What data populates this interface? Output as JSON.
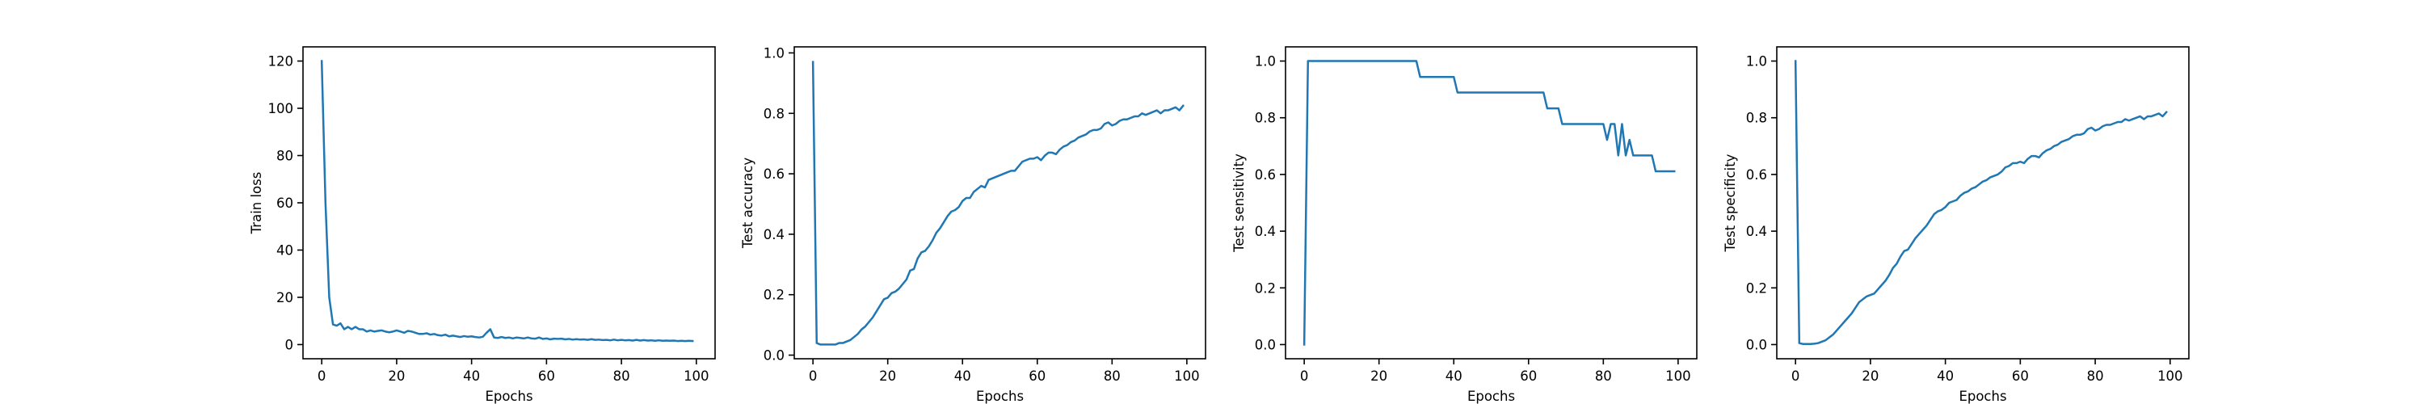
{
  "figure": {
    "background": "#ffffff",
    "line_color": "#1f77b4"
  },
  "chart_data": [
    {
      "type": "line",
      "xlabel": "Epochs",
      "ylabel": "Train loss",
      "xlim": [
        -5,
        105
      ],
      "ylim": [
        -6,
        126
      ],
      "xticks": [
        0,
        20,
        40,
        60,
        80,
        100
      ],
      "yticks": [
        0,
        20,
        40,
        60,
        80,
        100,
        120
      ],
      "grid": false,
      "series": [
        {
          "color": "#1f77b4",
          "x": [
            0,
            1,
            2,
            3,
            4,
            5,
            6,
            7,
            8,
            9,
            10,
            11,
            12,
            13,
            14,
            15,
            16,
            17,
            18,
            19,
            20,
            21,
            22,
            23,
            24,
            25,
            26,
            27,
            28,
            29,
            30,
            31,
            32,
            33,
            34,
            35,
            36,
            37,
            38,
            39,
            40,
            41,
            42,
            43,
            44,
            45,
            46,
            47,
            48,
            49,
            50,
            51,
            52,
            53,
            54,
            55,
            56,
            57,
            58,
            59,
            60,
            61,
            62,
            63,
            64,
            65,
            66,
            67,
            68,
            69,
            70,
            71,
            72,
            73,
            74,
            75,
            76,
            77,
            78,
            79,
            80,
            81,
            82,
            83,
            84,
            85,
            86,
            87,
            88,
            89,
            90,
            91,
            92,
            93,
            94,
            95,
            96,
            97,
            98,
            99
          ],
          "y": [
            120,
            60,
            20,
            8.5,
            8,
            9,
            6.5,
            7.5,
            6.5,
            7.5,
            6.5,
            6.5,
            5.5,
            6,
            5.5,
            5.8,
            6,
            5.5,
            5.2,
            5.5,
            6,
            5.5,
            5,
            5.8,
            5.5,
            5,
            4.5,
            4.5,
            4.8,
            4.2,
            4.5,
            4,
            3.8,
            4.2,
            3.5,
            3.8,
            3.5,
            3.2,
            3.6,
            3.3,
            3.5,
            3.2,
            3,
            3.3,
            5,
            6.5,
            3,
            2.8,
            3.2,
            2.8,
            3,
            2.6,
            3,
            2.8,
            2.6,
            3,
            2.6,
            2.5,
            3,
            2.4,
            2.6,
            2.2,
            2.5,
            2.4,
            2.5,
            2.2,
            2.4,
            2.1,
            2.3,
            2.1,
            2.2,
            2,
            2.3,
            2,
            2.1,
            1.9,
            2,
            1.8,
            2.1,
            1.8,
            2,
            1.8,
            1.9,
            1.7,
            2,
            1.7,
            1.9,
            1.7,
            1.8,
            1.6,
            1.8,
            1.6,
            1.7,
            1.6,
            1.7,
            1.5,
            1.6,
            1.5,
            1.6,
            1.5
          ]
        }
      ]
    },
    {
      "type": "line",
      "xlabel": "Epochs",
      "ylabel": "Test accuracy",
      "xlim": [
        -5,
        105
      ],
      "ylim": [
        -0.012,
        1.02
      ],
      "xticks": [
        0,
        20,
        40,
        60,
        80,
        100
      ],
      "yticks": [
        0.0,
        0.2,
        0.4,
        0.6,
        0.8,
        1.0
      ],
      "grid": false,
      "series": [
        {
          "color": "#1f77b4",
          "x": [
            0,
            1,
            2,
            3,
            4,
            5,
            6,
            7,
            8,
            9,
            10,
            11,
            12,
            13,
            14,
            15,
            16,
            17,
            18,
            19,
            20,
            21,
            22,
            23,
            24,
            25,
            26,
            27,
            28,
            29,
            30,
            31,
            32,
            33,
            34,
            35,
            36,
            37,
            38,
            39,
            40,
            41,
            42,
            43,
            44,
            45,
            46,
            47,
            48,
            49,
            50,
            51,
            52,
            53,
            54,
            55,
            56,
            57,
            58,
            59,
            60,
            61,
            62,
            63,
            64,
            65,
            66,
            67,
            68,
            69,
            70,
            71,
            72,
            73,
            74,
            75,
            76,
            77,
            78,
            79,
            80,
            81,
            82,
            83,
            84,
            85,
            86,
            87,
            88,
            89,
            90,
            91,
            92,
            93,
            94,
            95,
            96,
            97,
            98,
            99
          ],
          "y": [
            0.97,
            0.04,
            0.035,
            0.035,
            0.035,
            0.035,
            0.035,
            0.04,
            0.04,
            0.045,
            0.05,
            0.06,
            0.07,
            0.085,
            0.095,
            0.11,
            0.125,
            0.145,
            0.165,
            0.185,
            0.19,
            0.205,
            0.21,
            0.22,
            0.235,
            0.25,
            0.28,
            0.285,
            0.32,
            0.34,
            0.345,
            0.36,
            0.38,
            0.405,
            0.42,
            0.44,
            0.46,
            0.475,
            0.48,
            0.49,
            0.51,
            0.52,
            0.52,
            0.54,
            0.55,
            0.56,
            0.555,
            0.58,
            0.585,
            0.59,
            0.595,
            0.6,
            0.605,
            0.61,
            0.61,
            0.625,
            0.64,
            0.645,
            0.65,
            0.65,
            0.655,
            0.645,
            0.66,
            0.67,
            0.67,
            0.665,
            0.68,
            0.69,
            0.695,
            0.705,
            0.71,
            0.72,
            0.725,
            0.73,
            0.74,
            0.745,
            0.745,
            0.75,
            0.765,
            0.77,
            0.76,
            0.765,
            0.775,
            0.78,
            0.78,
            0.785,
            0.79,
            0.79,
            0.8,
            0.795,
            0.8,
            0.805,
            0.81,
            0.8,
            0.81,
            0.81,
            0.815,
            0.82,
            0.81,
            0.825
          ]
        }
      ]
    },
    {
      "type": "line",
      "xlabel": "Epochs",
      "ylabel": "Test sensitivity",
      "xlim": [
        -5,
        105
      ],
      "ylim": [
        -0.05,
        1.05
      ],
      "xticks": [
        0,
        20,
        40,
        60,
        80,
        100
      ],
      "yticks": [
        0.0,
        0.2,
        0.4,
        0.6,
        0.8,
        1.0
      ],
      "grid": false,
      "series": [
        {
          "color": "#1f77b4",
          "x": [
            0,
            1,
            29,
            30,
            31,
            39,
            40,
            41,
            63,
            64,
            65,
            67,
            68,
            69,
            79,
            80,
            81,
            82,
            83,
            84,
            85,
            86,
            87,
            88,
            89,
            90,
            93,
            94,
            95,
            99
          ],
          "y": [
            0.0,
            1.0,
            1.0,
            1.0,
            0.944,
            0.944,
            0.944,
            0.889,
            0.889,
            0.889,
            0.833,
            0.833,
            0.833,
            0.778,
            0.778,
            0.778,
            0.722,
            0.778,
            0.778,
            0.667,
            0.778,
            0.667,
            0.722,
            0.667,
            0.667,
            0.667,
            0.667,
            0.611,
            0.611,
            0.611
          ]
        }
      ]
    },
    {
      "type": "line",
      "xlabel": "Epochs",
      "ylabel": "Test specificity",
      "xlim": [
        -5,
        105
      ],
      "ylim": [
        -0.05,
        1.05
      ],
      "xticks": [
        0,
        20,
        40,
        60,
        80,
        100
      ],
      "yticks": [
        0.0,
        0.2,
        0.4,
        0.6,
        0.8,
        1.0
      ],
      "grid": false,
      "series": [
        {
          "color": "#1f77b4",
          "x": [
            0,
            1,
            2,
            3,
            4,
            5,
            6,
            7,
            8,
            9,
            10,
            11,
            12,
            13,
            14,
            15,
            16,
            17,
            18,
            19,
            20,
            21,
            22,
            23,
            24,
            25,
            26,
            27,
            28,
            29,
            30,
            31,
            32,
            33,
            34,
            35,
            36,
            37,
            38,
            39,
            40,
            41,
            42,
            43,
            44,
            45,
            46,
            47,
            48,
            49,
            50,
            51,
            52,
            53,
            54,
            55,
            56,
            57,
            58,
            59,
            60,
            61,
            62,
            63,
            64,
            65,
            66,
            67,
            68,
            69,
            70,
            71,
            72,
            73,
            74,
            75,
            76,
            77,
            78,
            79,
            80,
            81,
            82,
            83,
            84,
            85,
            86,
            87,
            88,
            89,
            90,
            91,
            92,
            93,
            94,
            95,
            96,
            97,
            98,
            99
          ],
          "y": [
            1.0,
            0.005,
            0.002,
            0.002,
            0.002,
            0.003,
            0.005,
            0.01,
            0.015,
            0.025,
            0.035,
            0.05,
            0.065,
            0.08,
            0.095,
            0.11,
            0.13,
            0.15,
            0.16,
            0.17,
            0.175,
            0.18,
            0.195,
            0.21,
            0.225,
            0.245,
            0.27,
            0.285,
            0.31,
            0.33,
            0.335,
            0.355,
            0.375,
            0.39,
            0.405,
            0.42,
            0.44,
            0.46,
            0.47,
            0.475,
            0.485,
            0.5,
            0.505,
            0.51,
            0.525,
            0.535,
            0.54,
            0.55,
            0.555,
            0.565,
            0.575,
            0.58,
            0.59,
            0.595,
            0.6,
            0.61,
            0.625,
            0.63,
            0.64,
            0.64,
            0.645,
            0.64,
            0.655,
            0.665,
            0.665,
            0.66,
            0.675,
            0.685,
            0.69,
            0.7,
            0.705,
            0.715,
            0.72,
            0.725,
            0.735,
            0.74,
            0.74,
            0.745,
            0.76,
            0.765,
            0.755,
            0.76,
            0.77,
            0.775,
            0.775,
            0.78,
            0.785,
            0.785,
            0.795,
            0.79,
            0.795,
            0.8,
            0.805,
            0.795,
            0.805,
            0.805,
            0.81,
            0.815,
            0.805,
            0.82
          ]
        }
      ]
    }
  ]
}
